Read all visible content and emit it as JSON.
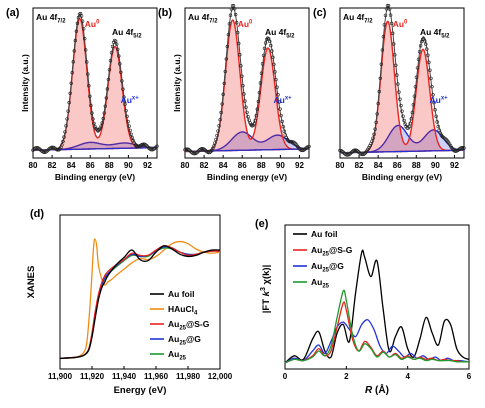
{
  "chart_data": [
    {
      "panel": "(a)",
      "type": "line",
      "title": "",
      "xlabel": "Binding energy (eV)",
      "ylabel": "Intensity (a.u.)",
      "xlim": [
        80,
        93
      ],
      "x_reversed": false,
      "x_ticks": [
        "80",
        "82",
        "84",
        "86",
        "88",
        "90",
        "92"
      ],
      "grid": false,
      "annotations": [
        {
          "text": "Au 4f",
          "sub": "7/2",
          "color": "#000000"
        },
        {
          "text": "Au",
          "sup": "0",
          "color": "#e8241f"
        },
        {
          "text": "Au 4f",
          "sub": "5/2",
          "color": "#000000"
        },
        {
          "text": "Au",
          "sup": "x+",
          "color": "#1f2fd6"
        }
      ],
      "peaks": {
        "au0": [
          {
            "center": 84.9,
            "height": 1.0,
            "width": 0.75
          },
          {
            "center": 88.6,
            "height": 0.78,
            "width": 0.75
          }
        ],
        "aux": [
          {
            "center": 86.0,
            "height": 0.05,
            "width": 1.2
          },
          {
            "center": 89.6,
            "height": 0.04,
            "width": 1.2
          }
        ],
        "background": [
          0.06,
          0.08
        ]
      },
      "colors": {
        "data": "#222222",
        "au0": "#e8241f",
        "aux": "#1f2fd6",
        "envelope": "#444444"
      }
    },
    {
      "panel": "(b)",
      "type": "line",
      "title": "",
      "xlabel": "Binding energy (eV)",
      "ylabel": "Intensity (a.u.)",
      "xlim": [
        80,
        93
      ],
      "x_reversed": false,
      "x_ticks": [
        "80",
        "82",
        "84",
        "86",
        "88",
        "90",
        "92"
      ],
      "grid": false,
      "annotations": [
        {
          "text": "Au 4f",
          "sub": "7/2",
          "color": "#000000"
        },
        {
          "text": "Au",
          "sup": "0",
          "color": "#e8241f"
        },
        {
          "text": "Au 4f",
          "sub": "5/2",
          "color": "#000000"
        },
        {
          "text": "Au",
          "sup": "x+",
          "color": "#1f2fd6"
        }
      ],
      "peaks": {
        "au0": [
          {
            "center": 85.0,
            "height": 1.0,
            "width": 0.75
          },
          {
            "center": 88.7,
            "height": 0.78,
            "width": 0.75
          }
        ],
        "aux": [
          {
            "center": 86.0,
            "height": 0.14,
            "width": 1.1
          },
          {
            "center": 89.7,
            "height": 0.11,
            "width": 1.1
          }
        ],
        "background": [
          0.05,
          0.07
        ]
      },
      "colors": {
        "data": "#222222",
        "au0": "#e8241f",
        "aux": "#1f2fd6",
        "envelope": "#444444"
      }
    },
    {
      "panel": "(c)",
      "type": "line",
      "title": "",
      "xlabel": "Binding energy (eV)",
      "ylabel": "",
      "xlim": [
        80,
        93
      ],
      "x_reversed": false,
      "x_ticks": [
        "80",
        "82",
        "84",
        "86",
        "88",
        "90",
        "92"
      ],
      "grid": false,
      "annotations": [
        {
          "text": "Au 4f",
          "sub": "7/2",
          "color": "#000000"
        },
        {
          "text": "Au",
          "sup": "0",
          "color": "#e8241f"
        },
        {
          "text": "Au 4f",
          "sub": "5/2",
          "color": "#000000"
        },
        {
          "text": "Au",
          "sup": "x+",
          "color": "#1f2fd6"
        }
      ],
      "peaks": {
        "au0": [
          {
            "center": 85.0,
            "height": 1.0,
            "width": 0.7
          },
          {
            "center": 88.7,
            "height": 0.78,
            "width": 0.7
          }
        ],
        "aux": [
          {
            "center": 86.1,
            "height": 0.2,
            "width": 1.0
          },
          {
            "center": 89.8,
            "height": 0.16,
            "width": 1.0
          }
        ],
        "background": [
          0.04,
          0.06
        ]
      },
      "colors": {
        "data": "#222222",
        "au0": "#e8241f",
        "aux": "#1f2fd6",
        "envelope": "#444444"
      }
    },
    {
      "panel": "(d)",
      "type": "line",
      "title": "",
      "xlabel": "Energy (eV)",
      "ylabel": "XANES",
      "xlim": [
        11900,
        12000
      ],
      "x_ticks": [
        "11,900",
        "11,920",
        "11,940",
        "11,960",
        "11,980",
        "12,000"
      ],
      "grid": false,
      "legend_position": "bottom-right",
      "series": [
        {
          "name": "Au foil",
          "color": "#000000",
          "x": [
            11900,
            11910,
            11915,
            11918,
            11920,
            11922,
            11924,
            11926,
            11928,
            11930,
            11935,
            11940,
            11945,
            11950,
            11955,
            11960,
            11965,
            11970,
            11975,
            11980,
            11985,
            11990,
            11995,
            12000
          ],
          "y": [
            0.0,
            0.01,
            0.03,
            0.08,
            0.2,
            0.38,
            0.55,
            0.66,
            0.72,
            0.78,
            0.88,
            0.95,
            1.02,
            0.93,
            0.92,
            1.0,
            1.06,
            1.03,
            0.98,
            0.96,
            0.97,
            1.0,
            1.02,
            1.02
          ]
        },
        {
          "name": "HAuCl",
          "sub": "4",
          "color": "#f08c14",
          "x": [
            11900,
            11910,
            11915,
            11917,
            11919,
            11921,
            11922,
            11923,
            11924,
            11926,
            11928,
            11930,
            11932,
            11935,
            11940,
            11945,
            11950,
            11955,
            11960,
            11965,
            11970,
            11975,
            11980,
            11985,
            11990,
            11995,
            12000
          ],
          "y": [
            0.0,
            0.01,
            0.06,
            0.18,
            0.55,
            1.05,
            1.12,
            1.05,
            0.88,
            0.75,
            0.69,
            0.72,
            0.74,
            0.78,
            0.84,
            0.9,
            0.94,
            0.93,
            0.96,
            1.02,
            1.08,
            1.1,
            1.08,
            1.03,
            1.0,
            0.99,
            1.0
          ]
        },
        {
          "name": "Au",
          "sub": "25",
          "suffix": "@S-G",
          "color": "#e8241f",
          "x": [
            11900,
            11910,
            11915,
            11918,
            11920,
            11922,
            11924,
            11926,
            11928,
            11930,
            11935,
            11940,
            11945,
            11950,
            11955,
            11960,
            11965,
            11970,
            11975,
            11980,
            11985,
            11990,
            11995,
            12000
          ],
          "y": [
            0.0,
            0.01,
            0.03,
            0.09,
            0.24,
            0.44,
            0.6,
            0.71,
            0.78,
            0.82,
            0.88,
            0.93,
            0.99,
            0.97,
            0.97,
            1.02,
            1.06,
            1.04,
            1.0,
            0.97,
            0.98,
            1.0,
            1.01,
            1.01
          ]
        },
        {
          "name": "Au",
          "sub": "25",
          "suffix": "@G",
          "color": "#2234d8",
          "x": [
            11900,
            11910,
            11915,
            11918,
            11920,
            11922,
            11924,
            11926,
            11928,
            11930,
            11935,
            11940,
            11945,
            11950,
            11955,
            11960,
            11965,
            11970,
            11975,
            11980,
            11985,
            11990,
            11995,
            12000
          ],
          "y": [
            0.0,
            0.01,
            0.03,
            0.09,
            0.23,
            0.42,
            0.58,
            0.69,
            0.76,
            0.8,
            0.87,
            0.93,
            0.98,
            0.96,
            0.97,
            1.01,
            1.05,
            1.04,
            1.0,
            0.98,
            0.98,
            1.0,
            1.01,
            1.01
          ]
        },
        {
          "name": "Au",
          "sub": "25",
          "suffix": "",
          "color": "#1f9a2e",
          "x": [
            11900,
            11910,
            11915,
            11918,
            11920,
            11922,
            11924,
            11926,
            11928,
            11930,
            11935,
            11940,
            11945,
            11950,
            11955,
            11960,
            11965,
            11970,
            11975,
            11980,
            11985,
            11990,
            11995,
            12000
          ],
          "y": [
            0.0,
            0.01,
            0.03,
            0.08,
            0.22,
            0.41,
            0.57,
            0.68,
            0.75,
            0.79,
            0.86,
            0.92,
            0.97,
            0.96,
            0.96,
            1.01,
            1.04,
            1.03,
            1.0,
            0.98,
            0.98,
            1.0,
            1.01,
            1.01
          ]
        }
      ]
    },
    {
      "panel": "(e)",
      "type": "line",
      "title": "",
      "xlabel_main": "R",
      "xlabel_unit": " (Å)",
      "ylabel": "|FT k³ χ(k)|",
      "ylabel_parts": {
        "pre": "|FT ",
        "k": "k",
        "sup": "3",
        "post": " χ(k)|"
      },
      "xlim": [
        0,
        6
      ],
      "x_ticks": [
        "0",
        "2",
        "4",
        "6"
      ],
      "grid": false,
      "legend_position": "top-left",
      "series": [
        {
          "name": "Au foil",
          "color": "#000000",
          "x": [
            0.0,
            0.3,
            0.6,
            0.9,
            1.1,
            1.3,
            1.5,
            1.7,
            1.9,
            2.1,
            2.3,
            2.5,
            2.6,
            2.8,
            3.0,
            3.2,
            3.4,
            3.6,
            3.8,
            4.0,
            4.2,
            4.4,
            4.6,
            4.8,
            5.0,
            5.2,
            5.4,
            5.6,
            5.8,
            6.0
          ],
          "y": [
            0.0,
            0.06,
            0.03,
            0.2,
            0.26,
            0.1,
            0.05,
            0.25,
            0.32,
            0.18,
            0.58,
            0.92,
            0.88,
            0.72,
            0.85,
            0.45,
            0.1,
            0.22,
            0.3,
            0.12,
            0.05,
            0.2,
            0.38,
            0.25,
            0.15,
            0.35,
            0.32,
            0.12,
            0.05,
            0.03
          ]
        },
        {
          "name": "Au",
          "sub": "25",
          "suffix": "@S-G",
          "color": "#e8241f",
          "x": [
            0.0,
            0.3,
            0.6,
            0.9,
            1.1,
            1.3,
            1.5,
            1.7,
            1.9,
            2.0,
            2.2,
            2.4,
            2.6,
            2.8,
            3.0,
            3.2,
            3.4,
            3.6,
            3.8,
            4.0,
            4.2,
            4.4,
            4.6,
            4.8,
            5.0,
            5.2,
            5.4,
            5.6,
            5.8,
            6.0
          ],
          "y": [
            0.0,
            0.03,
            0.02,
            0.06,
            0.12,
            0.06,
            0.1,
            0.3,
            0.5,
            0.44,
            0.2,
            0.1,
            0.18,
            0.13,
            0.06,
            0.1,
            0.05,
            0.08,
            0.04,
            0.06,
            0.03,
            0.05,
            0.03,
            0.04,
            0.02,
            0.03,
            0.02,
            0.02,
            0.01,
            0.01
          ]
        },
        {
          "name": "Au",
          "sub": "25",
          "suffix": "@G",
          "color": "#2234d8",
          "x": [
            0.0,
            0.3,
            0.6,
            0.9,
            1.1,
            1.3,
            1.5,
            1.7,
            1.9,
            2.1,
            2.3,
            2.5,
            2.7,
            2.9,
            3.1,
            3.3,
            3.5,
            3.7,
            3.9,
            4.1,
            4.3,
            4.5,
            4.7,
            4.9,
            5.1,
            5.3,
            5.5,
            5.7,
            6.0
          ],
          "y": [
            0.0,
            0.04,
            0.02,
            0.1,
            0.15,
            0.08,
            0.18,
            0.3,
            0.34,
            0.28,
            0.22,
            0.32,
            0.36,
            0.28,
            0.14,
            0.08,
            0.14,
            0.1,
            0.05,
            0.08,
            0.04,
            0.06,
            0.03,
            0.05,
            0.02,
            0.04,
            0.02,
            0.02,
            0.01
          ]
        },
        {
          "name": "Au",
          "sub": "25",
          "suffix": "",
          "color": "#1f9a2e",
          "x": [
            0.0,
            0.3,
            0.6,
            0.9,
            1.1,
            1.3,
            1.5,
            1.7,
            1.9,
            2.0,
            2.2,
            2.4,
            2.6,
            2.8,
            3.0,
            3.2,
            3.4,
            3.6,
            3.8,
            4.0,
            4.2,
            4.4,
            4.6,
            4.8,
            5.0,
            5.2,
            5.4,
            5.6,
            5.8,
            6.0
          ],
          "y": [
            0.0,
            0.03,
            0.02,
            0.05,
            0.1,
            0.06,
            0.14,
            0.38,
            0.6,
            0.52,
            0.24,
            0.1,
            0.16,
            0.12,
            0.05,
            0.09,
            0.05,
            0.07,
            0.03,
            0.05,
            0.03,
            0.04,
            0.02,
            0.03,
            0.02,
            0.02,
            0.02,
            0.01,
            0.01,
            0.01
          ]
        }
      ]
    }
  ]
}
